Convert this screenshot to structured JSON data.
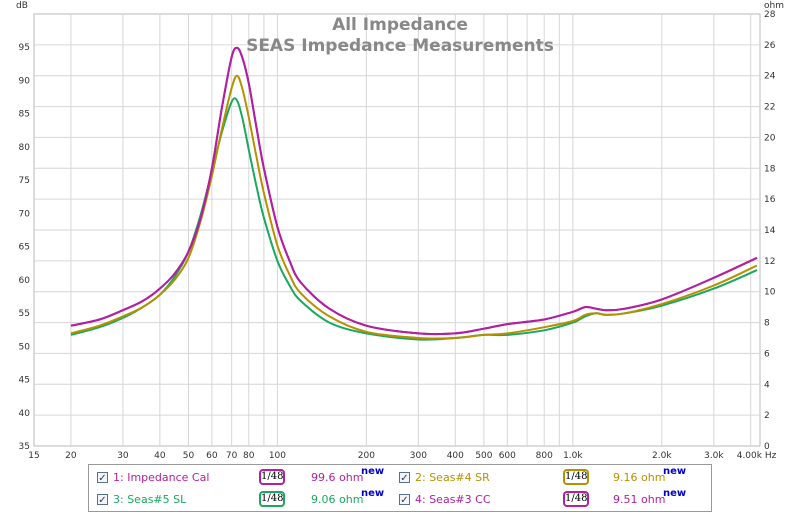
{
  "chart_data": {
    "type": "line",
    "title": "All Impedance",
    "subtitle": "SEAS Impedance Measurements",
    "x_unit": "Hz",
    "y_left_unit": "dB",
    "y_right_unit": "ohm",
    "xscale": "log",
    "xlim": [
      15,
      4300
    ],
    "ylim_left": [
      35,
      100
    ],
    "ylim_right": [
      0,
      28
    ],
    "grid": true,
    "x_ticks": [
      "15",
      "20",
      "30",
      "40",
      "50",
      "60",
      "70",
      "80",
      "100",
      "200",
      "300",
      "400",
      "500",
      "600",
      "800",
      "1.0k",
      "2.0k",
      "3.0k",
      "4.00k Hz"
    ],
    "y_left_ticks": [
      "35",
      "40",
      "45",
      "50",
      "55",
      "60",
      "65",
      "70",
      "75",
      "80",
      "85",
      "90",
      "95"
    ],
    "y_right_ticks": [
      "0",
      "2",
      "4",
      "6",
      "8",
      "10",
      "12",
      "14",
      "16",
      "18",
      "20",
      "22",
      "24",
      "26",
      "28"
    ],
    "series": [
      {
        "name": "1: Impedance Cal",
        "color": "#b020a0",
        "x": [
          20,
          25,
          30,
          35,
          40,
          45,
          50,
          55,
          60,
          65,
          70,
          73,
          76,
          80,
          85,
          90,
          100,
          110,
          120,
          150,
          200,
          300,
          400,
          500,
          600,
          800,
          1000,
          1100,
          1200,
          1300,
          1500,
          2000,
          3000,
          4200
        ],
        "y": [
          7.8,
          8.2,
          8.8,
          9.4,
          10.2,
          11.2,
          12.6,
          14.8,
          18.0,
          22.0,
          25.2,
          25.8,
          25.2,
          23.5,
          20.6,
          18.0,
          14.2,
          12.0,
          10.6,
          8.9,
          7.8,
          7.3,
          7.3,
          7.6,
          7.9,
          8.2,
          8.7,
          9.0,
          8.9,
          8.8,
          8.9,
          9.5,
          10.9,
          12.2
        ]
      },
      {
        "name": "2: Seas#4 SR",
        "color": "#b59100",
        "x": [
          20,
          25,
          30,
          35,
          40,
          45,
          50,
          55,
          60,
          65,
          70,
          73,
          76,
          80,
          85,
          90,
          100,
          110,
          120,
          150,
          200,
          300,
          400,
          500,
          600,
          800,
          1000,
          1100,
          1200,
          1300,
          1500,
          2000,
          3000,
          4200
        ],
        "y": [
          7.3,
          7.8,
          8.4,
          9.0,
          9.8,
          10.8,
          12.2,
          14.6,
          17.5,
          20.6,
          23.2,
          24.0,
          23.2,
          21.3,
          18.7,
          16.4,
          13.0,
          11.1,
          9.9,
          8.4,
          7.4,
          7.0,
          7.0,
          7.2,
          7.3,
          7.7,
          8.1,
          8.5,
          8.6,
          8.5,
          8.6,
          9.2,
          10.4,
          11.7
        ]
      },
      {
        "name": "3: Seas#5 SL",
        "color": "#1aa860",
        "x": [
          20,
          25,
          30,
          35,
          40,
          45,
          50,
          55,
          60,
          65,
          70,
          73,
          76,
          80,
          85,
          90,
          100,
          110,
          120,
          150,
          200,
          300,
          400,
          500,
          600,
          800,
          1000,
          1100,
          1200,
          1300,
          1500,
          2000,
          3000,
          4200
        ],
        "y": [
          7.2,
          7.7,
          8.3,
          9.0,
          9.8,
          11.0,
          12.6,
          15.0,
          17.8,
          20.4,
          22.3,
          22.4,
          21.3,
          19.2,
          16.8,
          14.8,
          12.0,
          10.4,
          9.4,
          8.0,
          7.3,
          6.9,
          7.0,
          7.2,
          7.2,
          7.5,
          8.0,
          8.4,
          8.6,
          8.5,
          8.6,
          9.1,
          10.2,
          11.4
        ]
      },
      {
        "name": "4: Seas#3 CC",
        "color": "#b020a0",
        "x": [
          20,
          25,
          30,
          35,
          40,
          45,
          50,
          55,
          60,
          65,
          70,
          73,
          76,
          80,
          85,
          90,
          100,
          110,
          120,
          150,
          200,
          300,
          400,
          500,
          600,
          800,
          1000,
          1100,
          1200,
          1300,
          1500,
          2000,
          3000,
          4200
        ],
        "y": [
          7.8,
          8.2,
          8.8,
          9.4,
          10.2,
          11.2,
          12.6,
          14.8,
          18.0,
          22.0,
          25.2,
          25.8,
          25.2,
          23.5,
          20.6,
          18.0,
          14.2,
          12.0,
          10.6,
          8.9,
          7.8,
          7.3,
          7.3,
          7.6,
          7.9,
          8.2,
          8.7,
          9.0,
          8.9,
          8.8,
          8.9,
          9.5,
          10.9,
          12.2
        ]
      }
    ]
  },
  "legend": {
    "items": [
      {
        "label": "1: Impedance Cal",
        "color": "#b020a0",
        "smoothing": "1/48",
        "value": "99.6 ohm",
        "badge": "new",
        "checked": "✓"
      },
      {
        "label": "2: Seas#4 SR",
        "color": "#b59100",
        "smoothing": "1/48",
        "value": "9.16 ohm",
        "badge": "new",
        "checked": "✓"
      },
      {
        "label": "3: Seas#5 SL",
        "color": "#1aa860",
        "smoothing": "1/48",
        "value": "9.06 ohm",
        "badge": "new",
        "checked": "✓"
      },
      {
        "label": "4: Seas#3 CC",
        "color": "#b020a0",
        "smoothing": "1/48",
        "value": "9.51 ohm",
        "badge": "new",
        "checked": "✓"
      }
    ]
  }
}
